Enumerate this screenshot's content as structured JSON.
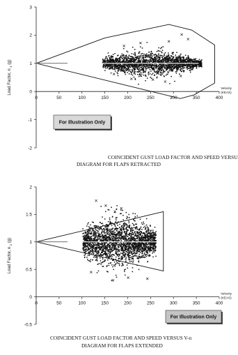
{
  "chart_data": [
    {
      "type": "scatter",
      "title": "COINCIDENT GUST LOAD FACTOR AND SPEED VERSUS V-n",
      "subtitle": "DIAGRAM FOR FLAPS RETRACTED",
      "xlabel": "Velocity",
      "xlabel_unit": "(KEAS)",
      "ylabel": "Load Factor, n",
      "ylabel_sub": "z",
      "ylabel_unit": "(g)",
      "xlim": [
        0,
        400
      ],
      "ylim": [
        -2,
        3
      ],
      "xticks": [
        0,
        50,
        100,
        150,
        200,
        250,
        300,
        350,
        400
      ],
      "yticks": [
        -2,
        -1,
        0,
        1,
        2,
        3
      ],
      "badge": "For Illustration Only",
      "envelope": {
        "x": [
          0,
          150,
          290,
          340,
          390,
          390,
          345,
          315,
          0
        ],
        "y": [
          1,
          1.9,
          2.38,
          2.18,
          1.65,
          0.3,
          -0.12,
          -0.25,
          1
        ]
      },
      "cloud": {
        "x_range": [
          145,
          362
        ],
        "center_x": 245,
        "center_y": 1.0,
        "y_spread_center": 0.47,
        "y_spread_edge": 0.14,
        "point_count": 2200,
        "outliers": [
          {
            "x": 318,
            "y": 2.02
          },
          {
            "x": 332,
            "y": 1.86
          },
          {
            "x": 228,
            "y": 1.72
          },
          {
            "x": 192,
            "y": 1.62
          },
          {
            "x": 290,
            "y": 1.78
          },
          {
            "x": 255,
            "y": 0.42
          },
          {
            "x": 282,
            "y": 0.35
          },
          {
            "x": 208,
            "y": 0.45
          },
          {
            "x": 316,
            "y": 0.55
          },
          {
            "x": 170,
            "y": 0.62
          }
        ]
      },
      "line": {
        "x": [
          0,
          355
        ],
        "y": [
          1,
          1
        ]
      }
    },
    {
      "type": "scatter",
      "title": "COINCIDENT GUST LOAD FACTOR AND SPEED VERSUS V-n",
      "subtitle": "DIAGRAM FOR FLAPS EXTENDED",
      "xlabel": "Velocity",
      "xlabel_unit": "(KEAS)",
      "ylabel": "Load Factor, n",
      "ylabel_sub": "z",
      "ylabel_unit": "(g)",
      "xlim": [
        0,
        400
      ],
      "ylim": [
        -0.5,
        2
      ],
      "xticks": [
        0,
        50,
        100,
        150,
        200,
        250,
        300,
        350,
        400
      ],
      "yticks": [
        -0.5,
        0,
        0.5,
        1,
        1.5,
        2
      ],
      "badge": "For Illustration Only",
      "envelope": {
        "x": [
          0,
          278,
          278,
          0
        ],
        "y": [
          1,
          1.55,
          0.47,
          1
        ]
      },
      "cloud": {
        "x_range": [
          102,
          262
        ],
        "center_x": 180,
        "center_y": 1.0,
        "y_spread_center": 0.52,
        "y_spread_edge": 0.22,
        "point_count": 2400,
        "outliers": [
          {
            "x": 131,
            "y": 1.75
          },
          {
            "x": 152,
            "y": 1.66
          },
          {
            "x": 186,
            "y": 1.61
          },
          {
            "x": 172,
            "y": 1.55
          },
          {
            "x": 168,
            "y": 0.3
          },
          {
            "x": 201,
            "y": 0.35
          },
          {
            "x": 243,
            "y": 0.33
          },
          {
            "x": 120,
            "y": 0.45
          }
        ]
      },
      "line": {
        "x": [
          0,
          270
        ],
        "y": [
          1,
          1
        ]
      }
    }
  ]
}
